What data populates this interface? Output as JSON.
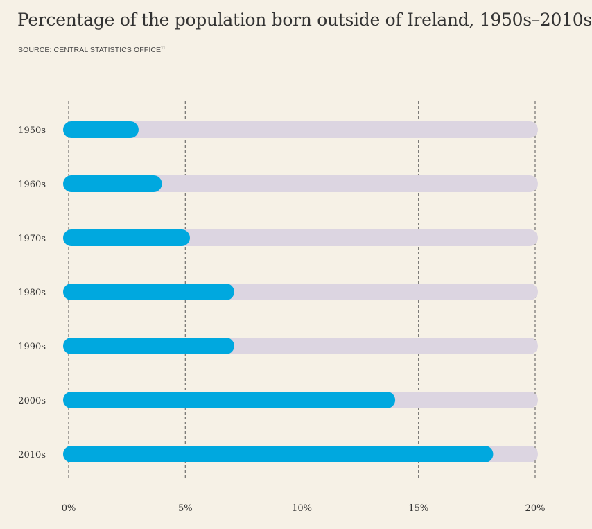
{
  "chart_data": {
    "type": "bar",
    "orientation": "horizontal",
    "title": "Percentage of the population born outside of Ireland, 1950s–2010s",
    "source": "SOURCE: CENTRAL STATISTICS OFFICE",
    "source_note": "11",
    "categories": [
      "1950s",
      "1960s",
      "1970s",
      "1980s",
      "1990s",
      "2000s",
      "2010s"
    ],
    "values": [
      3.0,
      4.0,
      5.2,
      7.1,
      7.1,
      14.0,
      18.2
    ],
    "xlim": [
      0,
      20
    ],
    "ticks": [
      0,
      5,
      10,
      15,
      20
    ],
    "tick_labels": [
      "0%",
      "5%",
      "10%",
      "15%",
      "20%"
    ],
    "grid": true,
    "colors": {
      "bar": "#00a8df",
      "track": "#dcd5e1",
      "grid": "#555555",
      "background": "#f6f1e6"
    }
  }
}
